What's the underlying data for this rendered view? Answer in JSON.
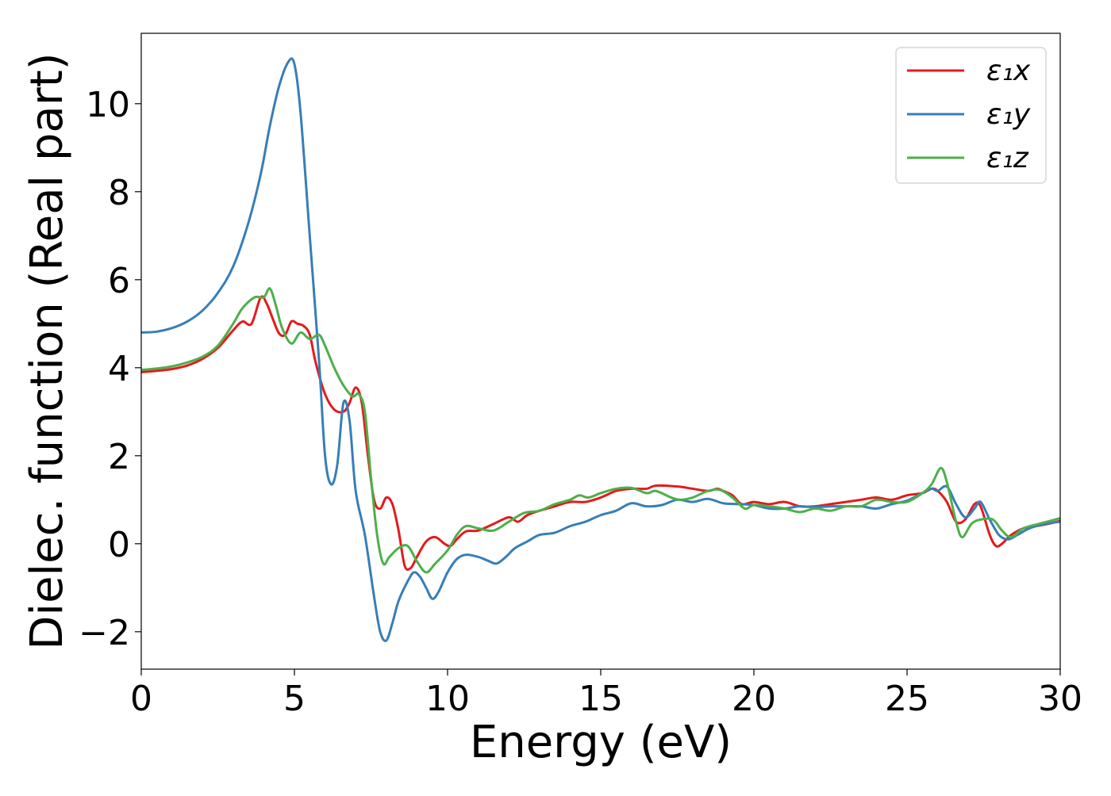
{
  "chart_data": {
    "type": "line",
    "title": "",
    "xlabel": "Energy (eV)",
    "ylabel": "Dielec. function (Real part)",
    "xlim": [
      0,
      30
    ],
    "ylim": [
      -2.85,
      11.6
    ],
    "xticks": [
      0,
      5,
      10,
      15,
      20,
      25,
      30
    ],
    "xtick_labels": [
      "0",
      "5",
      "10",
      "15",
      "20",
      "25",
      "30"
    ],
    "yticks": [
      -2,
      0,
      2,
      4,
      6,
      8,
      10
    ],
    "ytick_labels": [
      "−2",
      "0",
      "2",
      "4",
      "6",
      "8",
      "10"
    ],
    "grid": false,
    "legend_position": "upper right",
    "series": [
      {
        "name": "ε₁x",
        "color": "#e41a1c",
        "points": [
          [
            0,
            3.9
          ],
          [
            0.5,
            3.93
          ],
          [
            1,
            3.97
          ],
          [
            1.5,
            4.05
          ],
          [
            2,
            4.2
          ],
          [
            2.5,
            4.45
          ],
          [
            3,
            4.85
          ],
          [
            3.3,
            5.05
          ],
          [
            3.6,
            5.0
          ],
          [
            3.9,
            5.6
          ],
          [
            4.1,
            5.45
          ],
          [
            4.3,
            5.1
          ],
          [
            4.5,
            4.78
          ],
          [
            4.7,
            4.75
          ],
          [
            4.9,
            5.05
          ],
          [
            5.1,
            5.0
          ],
          [
            5.3,
            4.95
          ],
          [
            5.5,
            4.75
          ],
          [
            5.7,
            4.1
          ],
          [
            6.0,
            3.4
          ],
          [
            6.3,
            3.05
          ],
          [
            6.6,
            3.0
          ],
          [
            6.8,
            3.2
          ],
          [
            7.0,
            3.55
          ],
          [
            7.2,
            3.2
          ],
          [
            7.4,
            2.0
          ],
          [
            7.6,
            1.0
          ],
          [
            7.8,
            0.8
          ],
          [
            8.0,
            1.05
          ],
          [
            8.2,
            0.9
          ],
          [
            8.4,
            0.3
          ],
          [
            8.6,
            -0.5
          ],
          [
            8.8,
            -0.55
          ],
          [
            9.0,
            -0.3
          ],
          [
            9.3,
            0.05
          ],
          [
            9.6,
            0.15
          ],
          [
            9.9,
            0.0
          ],
          [
            10.1,
            -0.05
          ],
          [
            10.3,
            0.1
          ],
          [
            10.6,
            0.28
          ],
          [
            11.0,
            0.3
          ],
          [
            11.5,
            0.45
          ],
          [
            12.0,
            0.6
          ],
          [
            12.3,
            0.5
          ],
          [
            12.6,
            0.65
          ],
          [
            13.0,
            0.75
          ],
          [
            13.5,
            0.85
          ],
          [
            14.0,
            0.95
          ],
          [
            14.5,
            0.95
          ],
          [
            15.0,
            1.05
          ],
          [
            15.5,
            1.2
          ],
          [
            16.0,
            1.25
          ],
          [
            16.5,
            1.25
          ],
          [
            16.8,
            1.32
          ],
          [
            17.5,
            1.3
          ],
          [
            18.0,
            1.25
          ],
          [
            18.5,
            1.2
          ],
          [
            18.8,
            1.25
          ],
          [
            19.0,
            1.2
          ],
          [
            19.3,
            1.1
          ],
          [
            19.6,
            0.9
          ],
          [
            20.0,
            0.95
          ],
          [
            20.5,
            0.9
          ],
          [
            21.0,
            0.95
          ],
          [
            21.5,
            0.85
          ],
          [
            22.0,
            0.85
          ],
          [
            22.5,
            0.9
          ],
          [
            23.0,
            0.95
          ],
          [
            23.5,
            1.0
          ],
          [
            24.0,
            1.05
          ],
          [
            24.5,
            1.0
          ],
          [
            25.0,
            1.1
          ],
          [
            25.5,
            1.15
          ],
          [
            25.8,
            1.25
          ],
          [
            26.0,
            1.2
          ],
          [
            26.3,
            0.95
          ],
          [
            26.6,
            0.5
          ],
          [
            26.9,
            0.55
          ],
          [
            27.2,
            0.9
          ],
          [
            27.4,
            0.85
          ],
          [
            27.7,
            0.2
          ],
          [
            27.9,
            -0.05
          ],
          [
            28.1,
            0.0
          ],
          [
            28.4,
            0.2
          ],
          [
            28.8,
            0.35
          ],
          [
            29.2,
            0.4
          ],
          [
            29.6,
            0.45
          ],
          [
            30.0,
            0.52
          ]
        ]
      },
      {
        "name": "ε₁y",
        "color": "#377eb8",
        "points": [
          [
            0,
            4.8
          ],
          [
            0.5,
            4.82
          ],
          [
            1,
            4.9
          ],
          [
            1.5,
            5.05
          ],
          [
            2,
            5.3
          ],
          [
            2.5,
            5.7
          ],
          [
            3,
            6.3
          ],
          [
            3.5,
            7.3
          ],
          [
            3.9,
            8.4
          ],
          [
            4.2,
            9.5
          ],
          [
            4.5,
            10.4
          ],
          [
            4.8,
            10.95
          ],
          [
            5.0,
            10.9
          ],
          [
            5.2,
            9.8
          ],
          [
            5.5,
            7.0
          ],
          [
            5.8,
            4.2
          ],
          [
            6.0,
            2.0
          ],
          [
            6.2,
            1.35
          ],
          [
            6.4,
            1.8
          ],
          [
            6.6,
            3.2
          ],
          [
            6.8,
            2.8
          ],
          [
            7.0,
            1.2
          ],
          [
            7.3,
            0.2
          ],
          [
            7.6,
            -1.2
          ],
          [
            7.8,
            -2.0
          ],
          [
            8.0,
            -2.2
          ],
          [
            8.2,
            -1.8
          ],
          [
            8.4,
            -1.3
          ],
          [
            8.7,
            -0.85
          ],
          [
            8.9,
            -0.65
          ],
          [
            9.1,
            -0.75
          ],
          [
            9.3,
            -1.0
          ],
          [
            9.5,
            -1.25
          ],
          [
            9.7,
            -1.1
          ],
          [
            10.0,
            -0.65
          ],
          [
            10.3,
            -0.35
          ],
          [
            10.6,
            -0.25
          ],
          [
            11.0,
            -0.3
          ],
          [
            11.3,
            -0.38
          ],
          [
            11.6,
            -0.45
          ],
          [
            11.9,
            -0.3
          ],
          [
            12.2,
            -0.1
          ],
          [
            12.6,
            0.05
          ],
          [
            13.0,
            0.2
          ],
          [
            13.5,
            0.25
          ],
          [
            14.0,
            0.4
          ],
          [
            14.5,
            0.5
          ],
          [
            15.0,
            0.65
          ],
          [
            15.5,
            0.75
          ],
          [
            16.0,
            0.92
          ],
          [
            16.5,
            0.85
          ],
          [
            17.0,
            0.88
          ],
          [
            17.5,
            1.0
          ],
          [
            18.0,
            0.95
          ],
          [
            18.5,
            1.02
          ],
          [
            19.0,
            0.92
          ],
          [
            19.5,
            0.9
          ],
          [
            20.0,
            0.88
          ],
          [
            20.5,
            0.8
          ],
          [
            21.0,
            0.8
          ],
          [
            21.5,
            0.85
          ],
          [
            22.0,
            0.83
          ],
          [
            22.5,
            0.85
          ],
          [
            23.0,
            0.85
          ],
          [
            23.5,
            0.85
          ],
          [
            24.0,
            0.8
          ],
          [
            24.5,
            0.9
          ],
          [
            25.0,
            0.98
          ],
          [
            25.5,
            1.15
          ],
          [
            25.8,
            1.25
          ],
          [
            26.0,
            1.2
          ],
          [
            26.3,
            1.3
          ],
          [
            26.6,
            0.9
          ],
          [
            26.9,
            0.6
          ],
          [
            27.2,
            0.8
          ],
          [
            27.4,
            0.95
          ],
          [
            27.7,
            0.55
          ],
          [
            28.0,
            0.2
          ],
          [
            28.3,
            0.1
          ],
          [
            28.6,
            0.2
          ],
          [
            29.0,
            0.35
          ],
          [
            29.5,
            0.45
          ],
          [
            30.0,
            0.5
          ]
        ]
      },
      {
        "name": "ε₁z",
        "color": "#4daf4a",
        "points": [
          [
            0,
            3.95
          ],
          [
            0.5,
            3.98
          ],
          [
            1,
            4.03
          ],
          [
            1.5,
            4.12
          ],
          [
            2,
            4.25
          ],
          [
            2.5,
            4.5
          ],
          [
            3.0,
            5.0
          ],
          [
            3.3,
            5.35
          ],
          [
            3.7,
            5.6
          ],
          [
            4.0,
            5.6
          ],
          [
            4.2,
            5.8
          ],
          [
            4.4,
            5.4
          ],
          [
            4.6,
            4.9
          ],
          [
            4.9,
            4.55
          ],
          [
            5.2,
            4.8
          ],
          [
            5.5,
            4.65
          ],
          [
            5.8,
            4.75
          ],
          [
            6.0,
            4.5
          ],
          [
            6.3,
            4.0
          ],
          [
            6.6,
            3.6
          ],
          [
            6.9,
            3.35
          ],
          [
            7.1,
            3.4
          ],
          [
            7.3,
            3.0
          ],
          [
            7.5,
            1.5
          ],
          [
            7.7,
            0.2
          ],
          [
            7.9,
            -0.45
          ],
          [
            8.1,
            -0.3
          ],
          [
            8.4,
            -0.1
          ],
          [
            8.7,
            -0.05
          ],
          [
            9.0,
            -0.4
          ],
          [
            9.3,
            -0.65
          ],
          [
            9.6,
            -0.45
          ],
          [
            10.0,
            -0.15
          ],
          [
            10.3,
            0.2
          ],
          [
            10.6,
            0.4
          ],
          [
            11.0,
            0.35
          ],
          [
            11.5,
            0.3
          ],
          [
            12.0,
            0.5
          ],
          [
            12.5,
            0.7
          ],
          [
            13.0,
            0.75
          ],
          [
            13.5,
            0.9
          ],
          [
            14.0,
            1.0
          ],
          [
            14.3,
            1.1
          ],
          [
            14.6,
            1.05
          ],
          [
            15.0,
            1.15
          ],
          [
            15.5,
            1.25
          ],
          [
            16.0,
            1.27
          ],
          [
            16.5,
            1.15
          ],
          [
            16.8,
            1.2
          ],
          [
            17.3,
            1.05
          ],
          [
            17.6,
            1.0
          ],
          [
            18.0,
            1.05
          ],
          [
            18.5,
            1.2
          ],
          [
            18.9,
            1.22
          ],
          [
            19.3,
            1.05
          ],
          [
            19.7,
            0.8
          ],
          [
            20.0,
            0.88
          ],
          [
            20.5,
            0.85
          ],
          [
            21.0,
            0.8
          ],
          [
            21.5,
            0.72
          ],
          [
            22.0,
            0.8
          ],
          [
            22.5,
            0.75
          ],
          [
            23.0,
            0.85
          ],
          [
            23.5,
            0.85
          ],
          [
            24.0,
            1.0
          ],
          [
            24.5,
            0.95
          ],
          [
            25.0,
            0.95
          ],
          [
            25.5,
            1.15
          ],
          [
            25.8,
            1.35
          ],
          [
            26.1,
            1.72
          ],
          [
            26.3,
            1.4
          ],
          [
            26.6,
            0.5
          ],
          [
            26.8,
            0.15
          ],
          [
            27.1,
            0.45
          ],
          [
            27.4,
            0.55
          ],
          [
            27.8,
            0.55
          ],
          [
            28.1,
            0.3
          ],
          [
            28.4,
            0.15
          ],
          [
            28.8,
            0.35
          ],
          [
            29.3,
            0.45
          ],
          [
            30.0,
            0.58
          ]
        ]
      }
    ]
  }
}
